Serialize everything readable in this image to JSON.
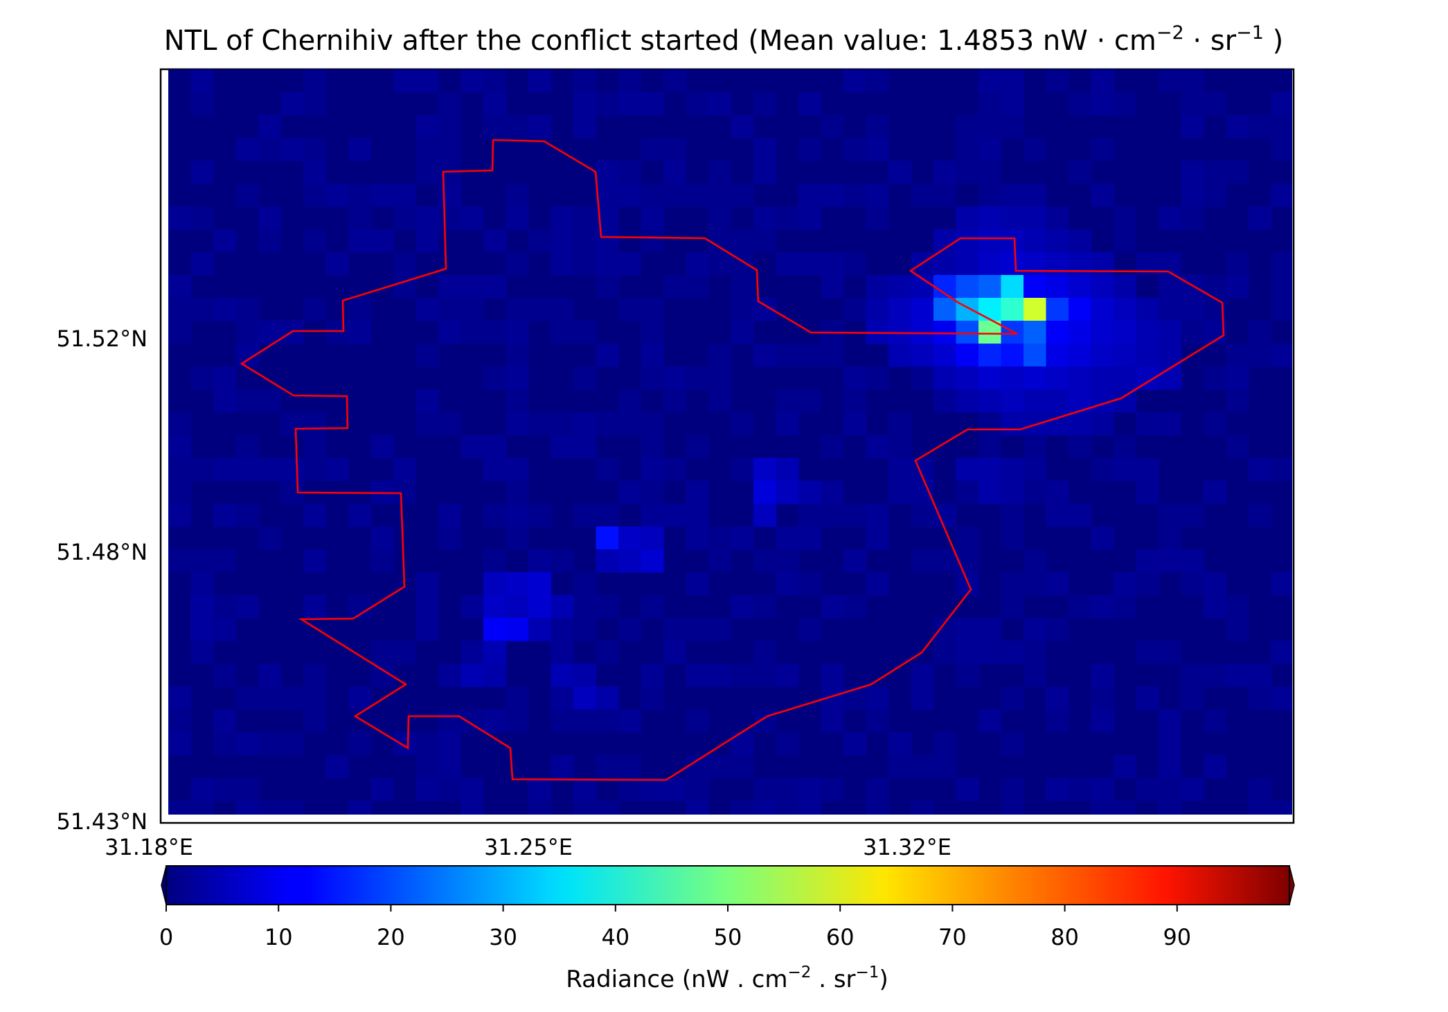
{
  "map": {
    "title": "NTL of Chernihiv after the conflict started (Mean value: 1.4853 nW · cm",
    "title_exp1": "−2",
    "title_mid": " · sr",
    "title_exp2": "−1",
    "title_end": " )",
    "lat_labels": [
      "51.52°N",
      "51.48°N",
      "51.43°N"
    ],
    "lon_labels": [
      "31.18°E",
      "31.25°E",
      "31.32°E"
    ],
    "boundary_color": "#ff0000",
    "background_color": "#00007f",
    "colormap": "jet",
    "hotspots": [
      {
        "name": "north-east city area",
        "peak_radiance": 58
      },
      {
        "name": "central patch",
        "peak_radiance": 15
      },
      {
        "name": "south-west patch",
        "peak_radiance": 13
      }
    ]
  },
  "colorbar": {
    "ticks": [
      "0",
      "10",
      "20",
      "30",
      "40",
      "50",
      "60",
      "70",
      "80",
      "90"
    ],
    "range": [
      0,
      100
    ],
    "extend": "both",
    "label": "Radiance (nW . cm",
    "label_exp1": "−2",
    "label_mid": " . sr",
    "label_exp2": "−1",
    "label_end": ")"
  }
}
